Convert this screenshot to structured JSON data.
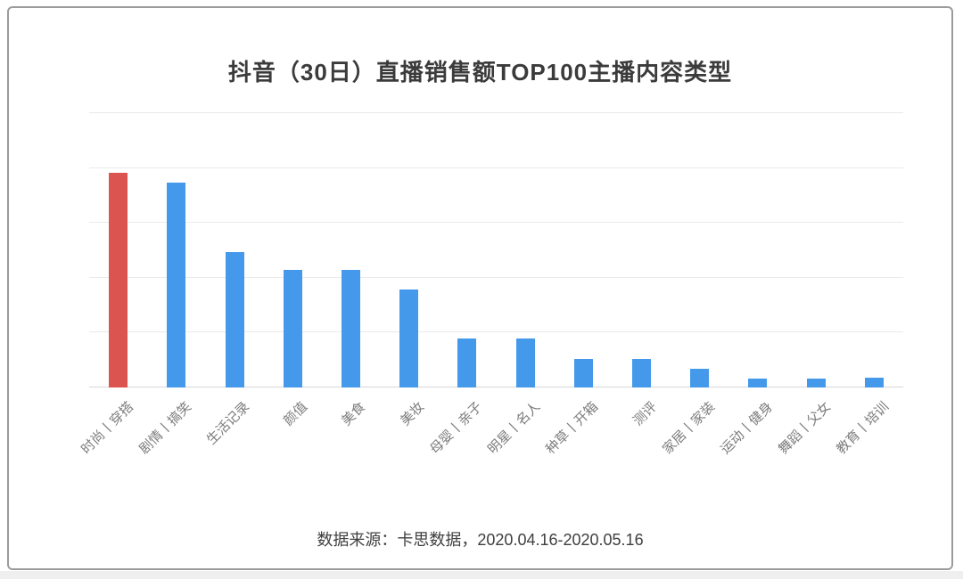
{
  "title": "抖音（30日）直播销售额TOP100主播内容类型",
  "source_note": "数据来源：卡思数据，2020.04.16-2020.05.16",
  "chart_data": {
    "type": "bar",
    "title": "抖音（30日）直播销售额TOP100主播内容类型",
    "categories": [
      "时尚丨穿搭",
      "剧情丨搞笑",
      "生活记录",
      "颜值",
      "美食",
      "美妆",
      "母婴丨亲子",
      "明星丨名人",
      "种草丨开箱",
      "测评",
      "家居丨家装",
      "运动丨健身",
      "舞蹈丨父女",
      "教育丨培训"
    ],
    "values": [
      19.6,
      18.7,
      12.3,
      10.7,
      10.7,
      8.9,
      4.5,
      4.5,
      2.6,
      2.6,
      1.7,
      0.8,
      0.8,
      0.9
    ],
    "highlight_index": 0,
    "highlight_color": "#DB5450",
    "bar_color": "#4499EB",
    "xlabel": "",
    "ylabel": "",
    "ylim": [
      0,
      25
    ],
    "y_gridline_step": 5,
    "y_tick_labels_visible": false,
    "grid": true,
    "legend_position": "none",
    "x_label_rotation_deg": 45
  },
  "colors": {
    "gridline": "#eaeaea",
    "axis_baseline": "#d7d7d7",
    "title_text": "#3b3b3b",
    "x_label_text": "#7d7d7d",
    "source_text": "#3f3f3f",
    "card_border": "#9b9b9b",
    "bottom_strip": "#efefef",
    "background": "#ffffff"
  }
}
